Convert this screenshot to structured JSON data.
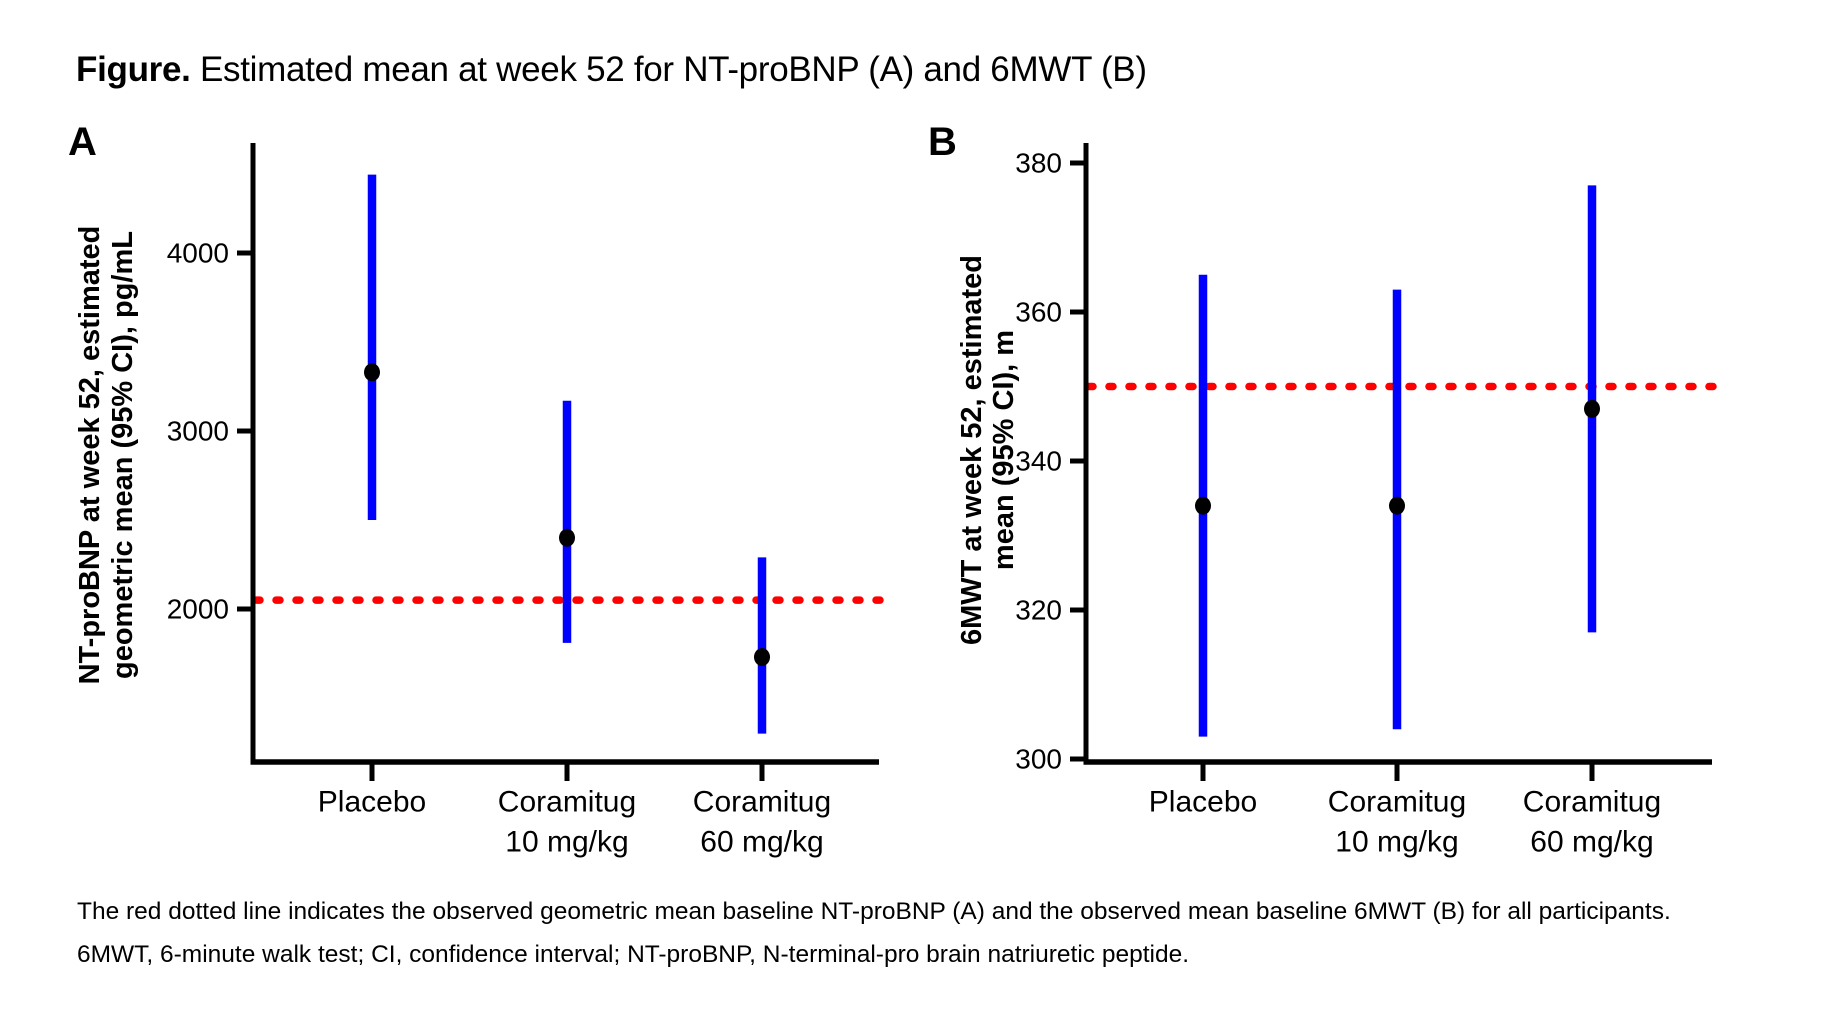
{
  "figure": {
    "label": "Figure.",
    "title_rest": " Estimated mean at week 52 for NT-proBNP (A) and 6MWT (B)"
  },
  "footnote": {
    "line1": "The red dotted line indicates the observed geometric mean baseline NT-proBNP (A) and the observed mean baseline 6MWT (B) for all participants.",
    "line2": "6MWT, 6-minute walk test; CI, confidence interval; NT-proBNP, N-terminal-pro brain natriuretic peptide."
  },
  "colors": {
    "ci_bar": "#0000FF",
    "mean_marker": "#000000",
    "baseline": "#FF0000",
    "axis": "#000000",
    "text": "#000000"
  },
  "chart_data": [
    {
      "type": "scatter",
      "panel_label": "A",
      "error_bars": true,
      "ylabel": "NT-proBNP at week 52, estimated geometric mean (95% CI), pg/mL",
      "ylabel_lines": [
        "NT-proBNP at week 52, estimated",
        "geometric mean (95% CI), pg/mL"
      ],
      "categories": [
        "Placebo",
        "Coramitug 10 mg/kg",
        "Coramitug 60 mg/kg"
      ],
      "category_label_lines": [
        [
          "Placebo"
        ],
        [
          "Coramitug",
          "10 mg/kg"
        ],
        [
          "Coramitug",
          "60 mg/kg"
        ]
      ],
      "series": [
        {
          "name": "Estimated geometric mean (95% CI)",
          "points": [
            {
              "category": "Placebo",
              "mean": 3330,
              "ci_low": 2500,
              "ci_high": 4440
            },
            {
              "category": "Coramitug 10 mg/kg",
              "mean": 2400,
              "ci_low": 1810,
              "ci_high": 3170
            },
            {
              "category": "Coramitug 60 mg/kg",
              "mean": 1730,
              "ci_low": 1300,
              "ci_high": 2290
            }
          ]
        }
      ],
      "baseline_value": 2050,
      "yticks": [
        2000,
        3000,
        4000
      ],
      "ylim": [
        1140,
        4620
      ],
      "grid": false,
      "legend": "none"
    },
    {
      "type": "scatter",
      "panel_label": "B",
      "error_bars": true,
      "ylabel": "6MWT at week 52, estimated mean (95% CI), m",
      "ylabel_lines": [
        "6MWT at week 52, estimated",
        "mean (95% CI), m"
      ],
      "categories": [
        "Placebo",
        "Coramitug 10 mg/kg",
        "Coramitug 60 mg/kg"
      ],
      "category_label_lines": [
        [
          "Placebo"
        ],
        [
          "Coramitug",
          "10 mg/kg"
        ],
        [
          "Coramitug",
          "60 mg/kg"
        ]
      ],
      "series": [
        {
          "name": "Estimated mean (95% CI)",
          "points": [
            {
              "category": "Placebo",
              "mean": 334,
              "ci_low": 303,
              "ci_high": 365
            },
            {
              "category": "Coramitug 10 mg/kg",
              "mean": 334,
              "ci_low": 304,
              "ci_high": 363
            },
            {
              "category": "Coramitug 60 mg/kg",
              "mean": 347,
              "ci_low": 317,
              "ci_high": 377
            }
          ]
        }
      ],
      "baseline_value": 350,
      "yticks": [
        300,
        320,
        340,
        360,
        380
      ],
      "ylim": [
        300,
        383
      ],
      "grid": false,
      "legend": "none"
    }
  ]
}
